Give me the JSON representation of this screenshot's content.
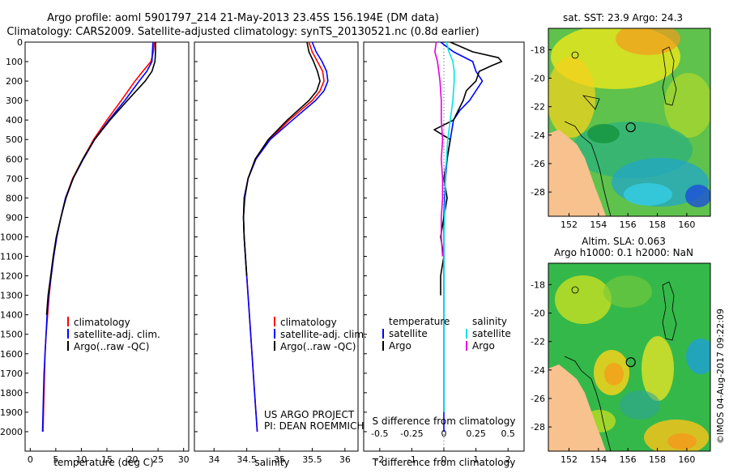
{
  "header": {
    "line1": "Argo profile: aoml 5901797_214 21-May-2013 23.45S 156.194E (DM data)",
    "line2": "Climatology: CARS2009. Satellite-adjusted climatology: synTS_20130521.nc (0.8d earlier)"
  },
  "colors": {
    "climatology": "#ff0000",
    "satellite": "#0000ff",
    "argo": "#000000",
    "sal_satellite": "#00e5e5",
    "sal_argo": "#e600e6",
    "land": "#f7c28e"
  },
  "legend": {
    "climatology": "climatology",
    "satellite": "satellite-adj. clim.",
    "argo": "Argo(..raw -QC)",
    "temperature": "temperature",
    "salinity": "salinity",
    "sat_short": "satellite",
    "argo_short": "Argo"
  },
  "credit": {
    "line1": "US ARGO PROJECT",
    "line2": "PI: DEAN ROEMMICH"
  },
  "maps": {
    "sst_title": "sat. SST: 23.9 Argo: 24.3",
    "sla_title1": "Altim. SLA: 0.063",
    "sla_title2": "Argo h1000: 0.1 h2000: NaN",
    "lat_ticks": [
      "-18",
      "-20",
      "-22",
      "-24",
      "-26",
      "-28"
    ],
    "lon_ticks": [
      "152",
      "154",
      "156",
      "158",
      "160"
    ],
    "lat_values": [
      -18,
      -20,
      -22,
      -24,
      -26,
      -28
    ],
    "lon_values": [
      152,
      154,
      156,
      158,
      160
    ],
    "lat_range": [
      -16.5,
      -29.7
    ],
    "lon_range": [
      150.6,
      161.6
    ],
    "argo_position": {
      "lon": 156.194,
      "lat": -23.45
    }
  },
  "imos_stamp": "©IMOS 04-Aug-2017 09:22:09",
  "chart_data": [
    {
      "type": "line",
      "name": "temperature-profile",
      "xlabel": "temperature (deg C)",
      "ylabel": "",
      "xlim": [
        -1,
        31
      ],
      "ylim": [
        0,
        2100
      ],
      "xticks": [
        0,
        5,
        10,
        15,
        20,
        25,
        30
      ],
      "yticks": [
        0,
        100,
        200,
        300,
        400,
        500,
        600,
        700,
        800,
        900,
        1000,
        1100,
        1200,
        1300,
        1400,
        1500,
        1600,
        1700,
        1800,
        1900,
        2000
      ],
      "series": [
        {
          "name": "climatology",
          "color": "#ff0000",
          "depth": [
            0,
            50,
            100,
            150,
            200,
            300,
            400,
            500,
            600,
            700,
            800,
            900,
            1000,
            1100,
            1200,
            1300,
            1400,
            1500,
            1600,
            1700,
            1800,
            1900,
            2000
          ],
          "values": [
            24.3,
            24.1,
            23.6,
            22.0,
            20.5,
            17.8,
            15.0,
            12.4,
            10.3,
            8.3,
            6.9,
            6.0,
            5.2,
            4.6,
            4.1,
            3.7,
            3.4,
            3.1,
            2.9,
            2.8,
            2.7,
            2.6,
            2.5
          ]
        },
        {
          "name": "satellite-adj. clim.",
          "color": "#0000ff",
          "depth": [
            0,
            50,
            100,
            150,
            200,
            300,
            400,
            500,
            600,
            700,
            800,
            900,
            1000,
            1100,
            1200,
            1300,
            1400,
            1500,
            1600,
            1700,
            1800,
            1900,
            2000
          ],
          "values": [
            24.0,
            23.9,
            23.8,
            22.8,
            21.3,
            18.5,
            15.4,
            12.6,
            10.4,
            8.4,
            6.9,
            6.0,
            5.2,
            4.6,
            4.1,
            3.6,
            3.3,
            3.1,
            2.9,
            2.7,
            2.6,
            2.5,
            2.4
          ]
        },
        {
          "name": "Argo(..raw -QC)",
          "color": "#000000",
          "depth": [
            0,
            50,
            100,
            150,
            200,
            300,
            400,
            500,
            600,
            700,
            800,
            900,
            1000,
            1100,
            1200,
            1300,
            1400
          ],
          "values": [
            24.5,
            24.5,
            24.4,
            23.8,
            22.5,
            19.0,
            15.6,
            12.6,
            10.3,
            8.4,
            7.0,
            6.0,
            5.1,
            4.5,
            4.0,
            3.5,
            3.2
          ]
        }
      ]
    },
    {
      "type": "line",
      "name": "salinity-profile",
      "xlabel": "salinity",
      "ylabel": "",
      "xlim": [
        33.7,
        36.2
      ],
      "ylim": [
        0,
        2100
      ],
      "xticks": [
        34,
        34.5,
        35,
        35.5,
        36
      ],
      "series": [
        {
          "name": "climatology",
          "color": "#ff0000",
          "depth": [
            0,
            50,
            100,
            150,
            200,
            250,
            300,
            400,
            500,
            600,
            700,
            800,
            900,
            1000,
            1200,
            1400,
            1600,
            1800,
            2000
          ],
          "values": [
            35.45,
            35.5,
            35.58,
            35.66,
            35.68,
            35.62,
            35.5,
            35.15,
            34.85,
            34.64,
            34.52,
            34.46,
            34.45,
            34.46,
            34.5,
            34.54,
            34.58,
            34.62,
            34.66
          ]
        },
        {
          "name": "satellite-adj. clim.",
          "color": "#0000ff",
          "depth": [
            0,
            50,
            100,
            150,
            200,
            250,
            300,
            400,
            500,
            600,
            700,
            800,
            900,
            1000,
            1200,
            1400,
            1600,
            1800,
            2000
          ],
          "values": [
            35.5,
            35.56,
            35.65,
            35.72,
            35.74,
            35.68,
            35.55,
            35.2,
            34.86,
            34.64,
            34.52,
            34.46,
            34.45,
            34.46,
            34.5,
            34.54,
            34.58,
            34.62,
            34.66
          ]
        },
        {
          "name": "Argo(..raw -QC)",
          "color": "#000000",
          "depth": [
            0,
            50,
            100,
            150,
            200,
            250,
            300,
            400,
            500,
            600,
            700,
            800,
            900,
            1000,
            1100,
            1200
          ],
          "values": [
            35.42,
            35.45,
            35.52,
            35.58,
            35.62,
            35.57,
            35.45,
            35.12,
            34.83,
            34.63,
            34.52,
            34.47,
            34.45,
            34.46,
            34.48,
            34.5
          ]
        }
      ]
    },
    {
      "type": "line",
      "name": "difference-profile",
      "xlabel": "T difference from climatology",
      "xlabel_top": "S difference from climatology",
      "xlim": [
        -2.5,
        2.5
      ],
      "ylim": [
        0,
        2100
      ],
      "xticks": [
        -2,
        -1,
        0,
        1,
        2
      ],
      "sticks_labels": [
        "-0.5",
        "-0.25",
        "0",
        "0.25",
        "0.5"
      ],
      "sticks_values": [
        -0.5,
        -0.25,
        0,
        0.25,
        0.5
      ],
      "series": [
        {
          "name": "T satellite",
          "color": "#0000ff",
          "depth": [
            0,
            50,
            100,
            150,
            200,
            250,
            300,
            350,
            400,
            500,
            600,
            700,
            800,
            900,
            1000,
            1100,
            1200,
            1400,
            1600,
            1800,
            2000
          ],
          "values": [
            -0.1,
            0.3,
            0.9,
            1.0,
            1.2,
            1.0,
            0.8,
            0.5,
            0.3,
            0.2,
            0.1,
            0.05,
            0.02,
            0.0,
            0.0,
            0.0,
            0.0,
            0.0,
            0.0,
            0.0,
            0.0
          ]
        },
        {
          "name": "T Argo",
          "color": "#000000",
          "depth": [
            0,
            50,
            80,
            100,
            120,
            150,
            200,
            250,
            300,
            400,
            450,
            500,
            600,
            700,
            800,
            900,
            1000,
            1100,
            1200,
            1300
          ],
          "values": [
            0.2,
            0.9,
            1.7,
            1.8,
            1.5,
            1.1,
            1.0,
            0.7,
            0.6,
            0.3,
            -0.3,
            0.2,
            0.1,
            0.0,
            0.1,
            0.0,
            -0.1,
            0.0,
            -0.1,
            -0.1
          ]
        },
        {
          "name": "S satellite",
          "color": "#00e5e5",
          "depth": [
            0,
            50,
            100,
            150,
            200,
            300,
            400,
            500,
            600,
            700,
            800,
            1000,
            1200,
            1400,
            1600,
            1800,
            1900
          ],
          "values": [
            0.02,
            0.04,
            0.07,
            0.08,
            0.08,
            0.07,
            0.05,
            0.03,
            0.02,
            0.01,
            0.01,
            0.0,
            0.0,
            0.0,
            0.0,
            0.0,
            0.0
          ]
        },
        {
          "name": "S Argo",
          "color": "#e600e6",
          "depth": [
            0,
            50,
            100,
            150,
            200,
            300,
            400,
            500,
            600,
            700,
            800,
            900,
            1000,
            1100
          ],
          "values": [
            -0.06,
            -0.07,
            -0.05,
            -0.04,
            -0.03,
            -0.02,
            -0.02,
            -0.01,
            -0.02,
            -0.01,
            -0.01,
            -0.02,
            -0.02,
            -0.01
          ]
        }
      ]
    }
  ]
}
